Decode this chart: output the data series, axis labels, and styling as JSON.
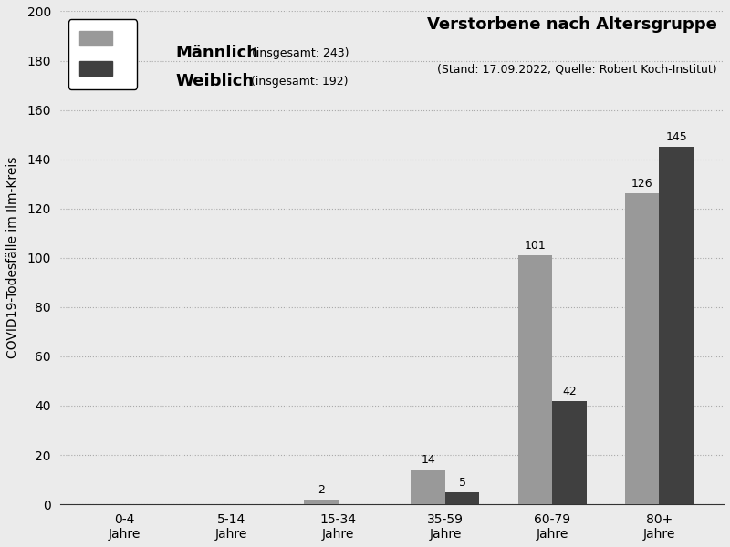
{
  "categories": [
    "0-4\nJahre",
    "5-14\nJahre",
    "15-34\nJahre",
    "35-59\nJahre",
    "60-79\nJahre",
    "80+\nJahre"
  ],
  "maennlich": [
    0,
    0,
    2,
    14,
    101,
    126
  ],
  "weiblich": [
    0,
    0,
    0,
    5,
    42,
    145
  ],
  "maennlich_total": 243,
  "weiblich_total": 192,
  "color_maennlich": "#999999",
  "color_weiblich": "#404040",
  "title": "Verstorbene nach Altersgruppe",
  "subtitle": "(Stand: 17.09.2022; Quelle: Robert Koch-Institut)",
  "ylabel": "COVID19-Todesfälle im Ilm-Kreis",
  "ylim": [
    0,
    200
  ],
  "yticks": [
    0,
    20,
    40,
    60,
    80,
    100,
    120,
    140,
    160,
    180,
    200
  ],
  "background_color": "#ebebeb",
  "bar_width": 0.32,
  "title_fontsize": 13,
  "subtitle_fontsize": 9,
  "legend_name_fontsize": 13,
  "legend_detail_fontsize": 9,
  "axis_label_fontsize": 10,
  "tick_fontsize": 10,
  "annotation_fontsize": 9
}
